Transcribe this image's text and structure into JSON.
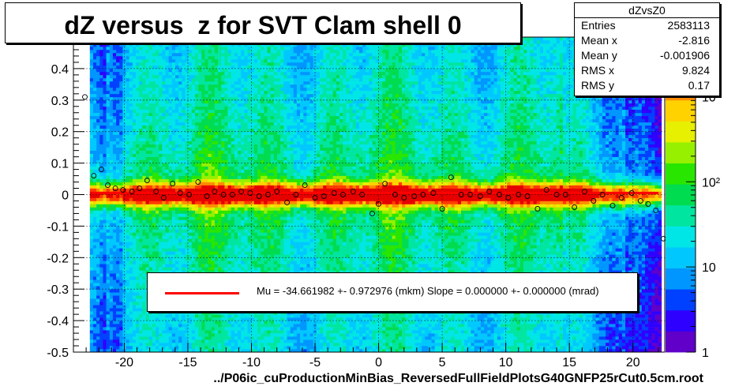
{
  "chart_data": {
    "type": "heatmap",
    "title": "dZ versus  z for SVT Clam shell 0",
    "xlabel": "",
    "ylabel": "",
    "xlim": [
      -24,
      22.5
    ],
    "ylim": [
      -0.5,
      0.5
    ],
    "x_ticks": [
      -20,
      -15,
      -10,
      -5,
      0,
      5,
      10,
      15,
      20
    ],
    "x_tick_labels": [
      "-20",
      "-15",
      "-10",
      "-5",
      "0",
      "5",
      "10",
      "15",
      "20"
    ],
    "y_ticks": [
      -0.5,
      -0.4,
      -0.3,
      -0.2,
      -0.1,
      0,
      0.1,
      0.2,
      0.3,
      0.4
    ],
    "y_tick_labels": [
      "-0.5",
      "-0.4",
      "-0.3",
      "-0.2",
      "-0.1",
      "0",
      "0.1",
      "0.2",
      "0.3",
      "0.4"
    ],
    "grid": true,
    "colorbar": {
      "scale": "log",
      "range": [
        1,
        5000
      ],
      "tick_labels": [
        "1",
        "10",
        "10²",
        "10³"
      ],
      "colors": [
        "#6000c8",
        "#2e00ff",
        "#0040ff",
        "#0096ff",
        "#00c8ff",
        "#00e6e6",
        "#00e6a0",
        "#00dc50",
        "#28e600",
        "#96f000",
        "#e6f000",
        "#ffd200",
        "#ff8c00",
        "#ff3c00",
        "#e60000"
      ]
    },
    "profile_points": {
      "x": [
        -23.1,
        -22.4,
        -21.8,
        -21.3,
        -20.7,
        -20.1,
        -19.4,
        -18.8,
        -18.2,
        -17.5,
        -16.9,
        -16.2,
        -15.6,
        -14.9,
        -14.2,
        -13.5,
        -12.9,
        -12.2,
        -11.5,
        -10.8,
        -10.1,
        -9.4,
        -8.7,
        -8.0,
        -7.2,
        -6.5,
        -5.8,
        -5.0,
        -4.3,
        -3.5,
        -2.8,
        -2.0,
        -1.3,
        -0.5,
        0.0,
        0.5,
        1.3,
        2.0,
        2.8,
        3.5,
        4.3,
        5.0,
        5.7,
        6.5,
        7.2,
        8.0,
        8.7,
        9.5,
        10.2,
        11.0,
        11.7,
        12.5,
        13.2,
        14.0,
        14.7,
        15.4,
        16.2,
        16.9,
        17.6,
        18.4,
        19.1,
        19.9,
        20.6,
        21.2,
        21.8,
        22.4
      ],
      "y": [
        0.31,
        0.06,
        0.08,
        0.03,
        0.02,
        0.015,
        0.01,
        0.02,
        0.045,
        0.01,
        -0.01,
        0.035,
        0.005,
        0.0,
        0.04,
        -0.005,
        0.01,
        0.0,
        0.0,
        0.01,
        0.005,
        -0.005,
        0.0,
        0.01,
        -0.025,
        0.0,
        0.03,
        -0.01,
        -0.005,
        0.005,
        0.0,
        0.01,
        0.0,
        -0.06,
        -0.03,
        0.035,
        0.0,
        -0.01,
        -0.005,
        0.0,
        0.005,
        -0.045,
        0.055,
        0.0,
        0.0,
        -0.005,
        0.01,
        0.0,
        -0.01,
        0.0,
        -0.005,
        -0.045,
        0.015,
        0.0,
        0.0,
        -0.04,
        0.01,
        -0.02,
        0.0,
        -0.035,
        -0.01,
        0.005,
        -0.02,
        -0.03,
        -0.05,
        -0.14
      ]
    },
    "fit_line": {
      "x": [
        -22.5,
        22
      ],
      "y": [
        0.005,
        0.005
      ]
    },
    "legend": {
      "placement": "bottom-center",
      "entries": [
        {
          "label": "Mu = -34.661982 +- 0.972976 (mkm) Slope = 0.000000 +- 0.000000 (mrad)",
          "color": "#ff0000"
        }
      ]
    },
    "stats": {
      "name": "dZvsZ0",
      "rows": [
        {
          "key": "Entries",
          "value": "2583113"
        },
        {
          "key": "Mean x",
          "value": "-2.816"
        },
        {
          "key": "Mean y",
          "value": "-0.001906"
        },
        {
          "key": "RMS x",
          "value": "9.824"
        },
        {
          "key": "RMS y",
          "value": "0.17"
        }
      ]
    }
  },
  "footer": "../P06ic_cuProductionMinBias_ReversedFullFieldPlotsG40GNFP25rCut0.5cm.root"
}
